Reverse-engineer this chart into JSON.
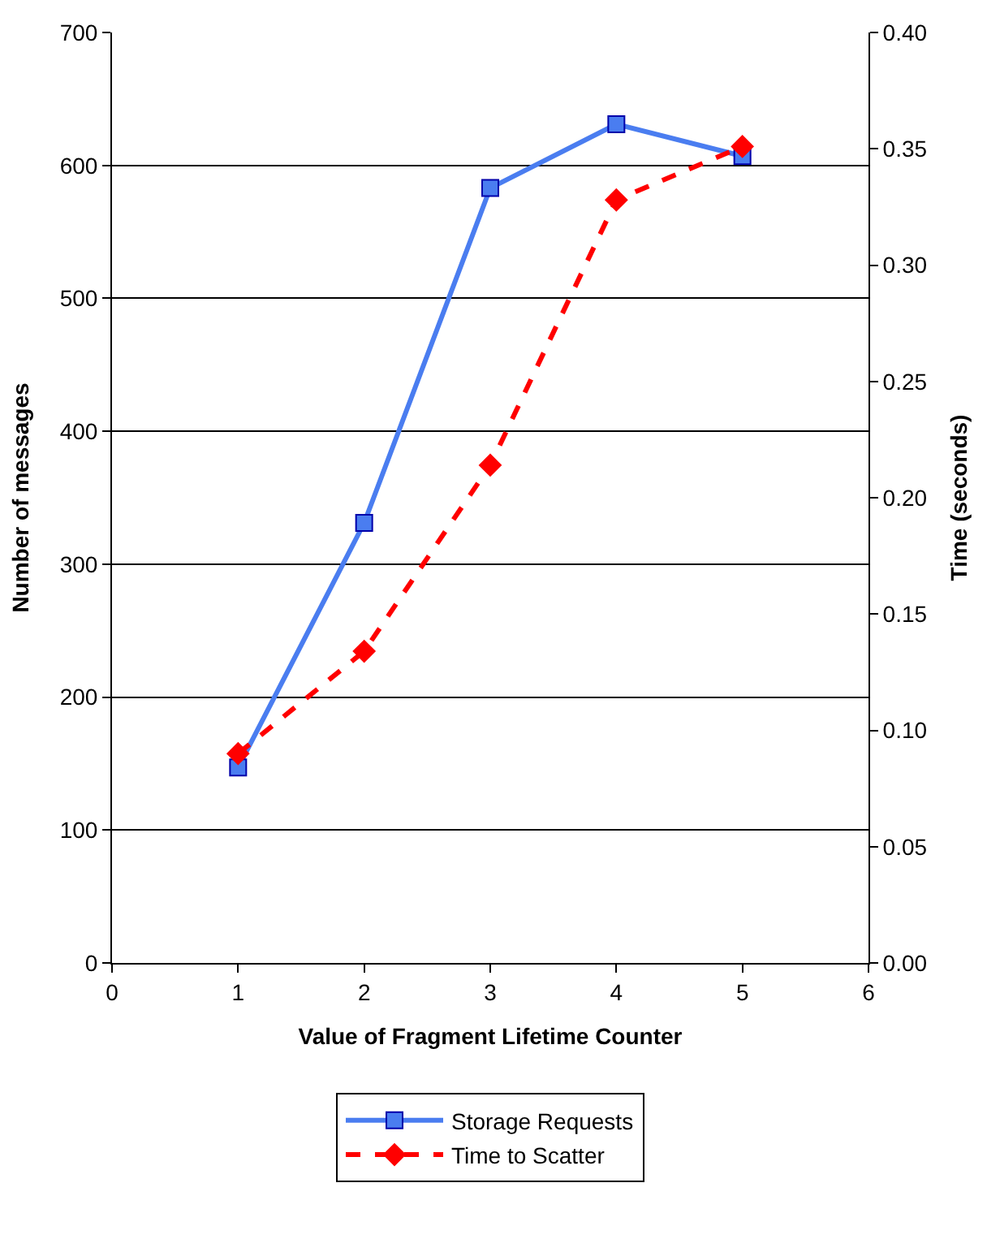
{
  "chart_data": {
    "type": "line",
    "xlabel": "Value of Fragment Lifetime Counter",
    "ylabel": "Number of messages",
    "y2label": "Time (seconds)",
    "x": [
      1,
      2,
      3,
      4,
      5
    ],
    "series": [
      {
        "name": "Storage Requests",
        "color": "#4a7df0",
        "values": [
          147,
          331,
          583,
          631,
          607
        ],
        "marker": "square",
        "line_style": "solid"
      },
      {
        "name": "Time to Scatter",
        "color": "#ff0000",
        "values": [
          0.09,
          0.134,
          0.214,
          0.328,
          0.351
        ],
        "marker": "diamond",
        "line_style": "dashed",
        "axis": "y2"
      }
    ],
    "xlim": [
      0,
      6
    ],
    "xticks": [
      0,
      1,
      2,
      3,
      4,
      5,
      6
    ],
    "ylim": [
      0,
      700
    ],
    "yticks": [
      0,
      100,
      200,
      300,
      400,
      500,
      600,
      700
    ],
    "y2lim": [
      0,
      0.4
    ],
    "y2ticks": [
      {
        "value": 0,
        "label": "0.00"
      },
      {
        "value": 0.05,
        "label": "0.05"
      },
      {
        "value": 0.1,
        "label": "0.10"
      },
      {
        "value": 0.15,
        "label": "0.15"
      },
      {
        "value": 0.2,
        "label": "0.20"
      },
      {
        "value": 0.25,
        "label": "0.25"
      },
      {
        "value": 0.3,
        "label": "0.30"
      },
      {
        "value": 0.35,
        "label": "0.35"
      },
      {
        "value": 0.4,
        "label": "0.40"
      }
    ],
    "grid": "y",
    "legend": "bottom"
  }
}
